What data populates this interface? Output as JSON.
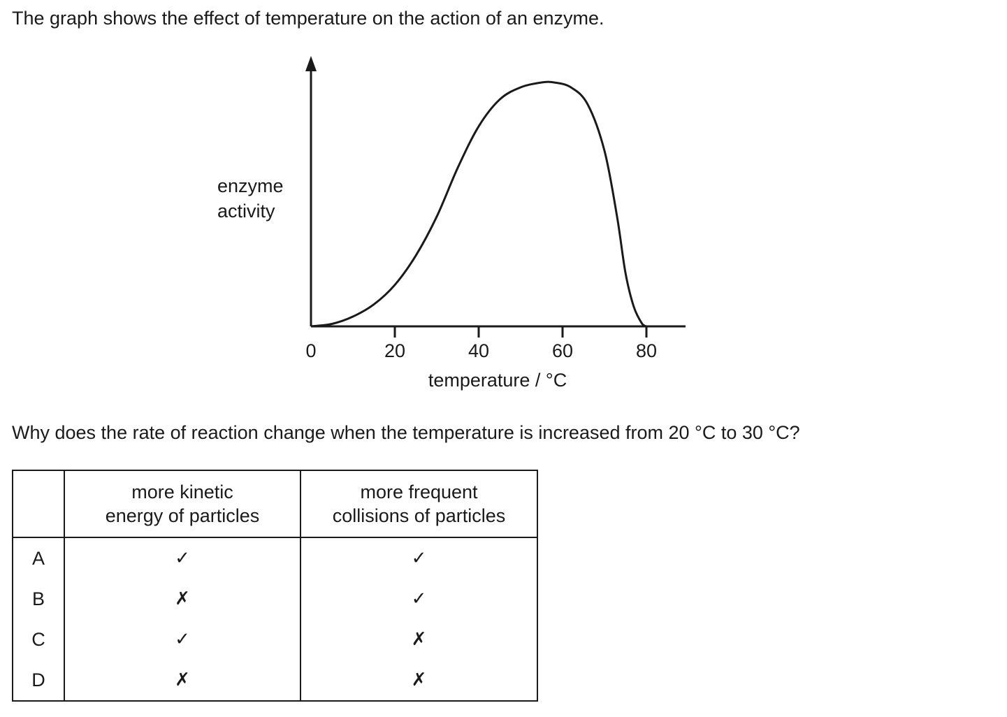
{
  "intro": "The graph shows the effect of temperature on the action of an enzyme.",
  "chart_data": {
    "type": "line",
    "title": "",
    "xlabel": "temperature / °C",
    "ylabel_lines": [
      "enzyme",
      "activity"
    ],
    "x_ticks": [
      0,
      20,
      40,
      60,
      80
    ],
    "xlim": [
      0,
      89
    ],
    "ylim": [
      0,
      100
    ],
    "y_ticks_shown": false,
    "grid": false,
    "series": [
      {
        "x": [
          0,
          5,
          10,
          15,
          20,
          25,
          30,
          35,
          40,
          45,
          50,
          55,
          58,
          62,
          66,
          70,
          73,
          75,
          77,
          79,
          80
        ],
        "y": [
          0,
          1,
          4,
          9,
          17,
          29,
          45,
          65,
          82,
          93,
          98,
          100,
          100,
          98,
          91,
          72,
          45,
          22,
          8,
          1,
          0
        ]
      }
    ]
  },
  "question": "Why does the rate of reaction change when the temperature is increased from 20 °C to 30 °C?",
  "table": {
    "headers": [
      "",
      "more kinetic\nenergy of particles",
      "more frequent\ncollisions of particles"
    ],
    "rows": [
      {
        "key": "A",
        "kinetic": "✓",
        "collisions": "✓"
      },
      {
        "key": "B",
        "kinetic": "✗",
        "collisions": "✓"
      },
      {
        "key": "C",
        "kinetic": "✓",
        "collisions": "✗"
      },
      {
        "key": "D",
        "kinetic": "✗",
        "collisions": "✗"
      }
    ]
  }
}
